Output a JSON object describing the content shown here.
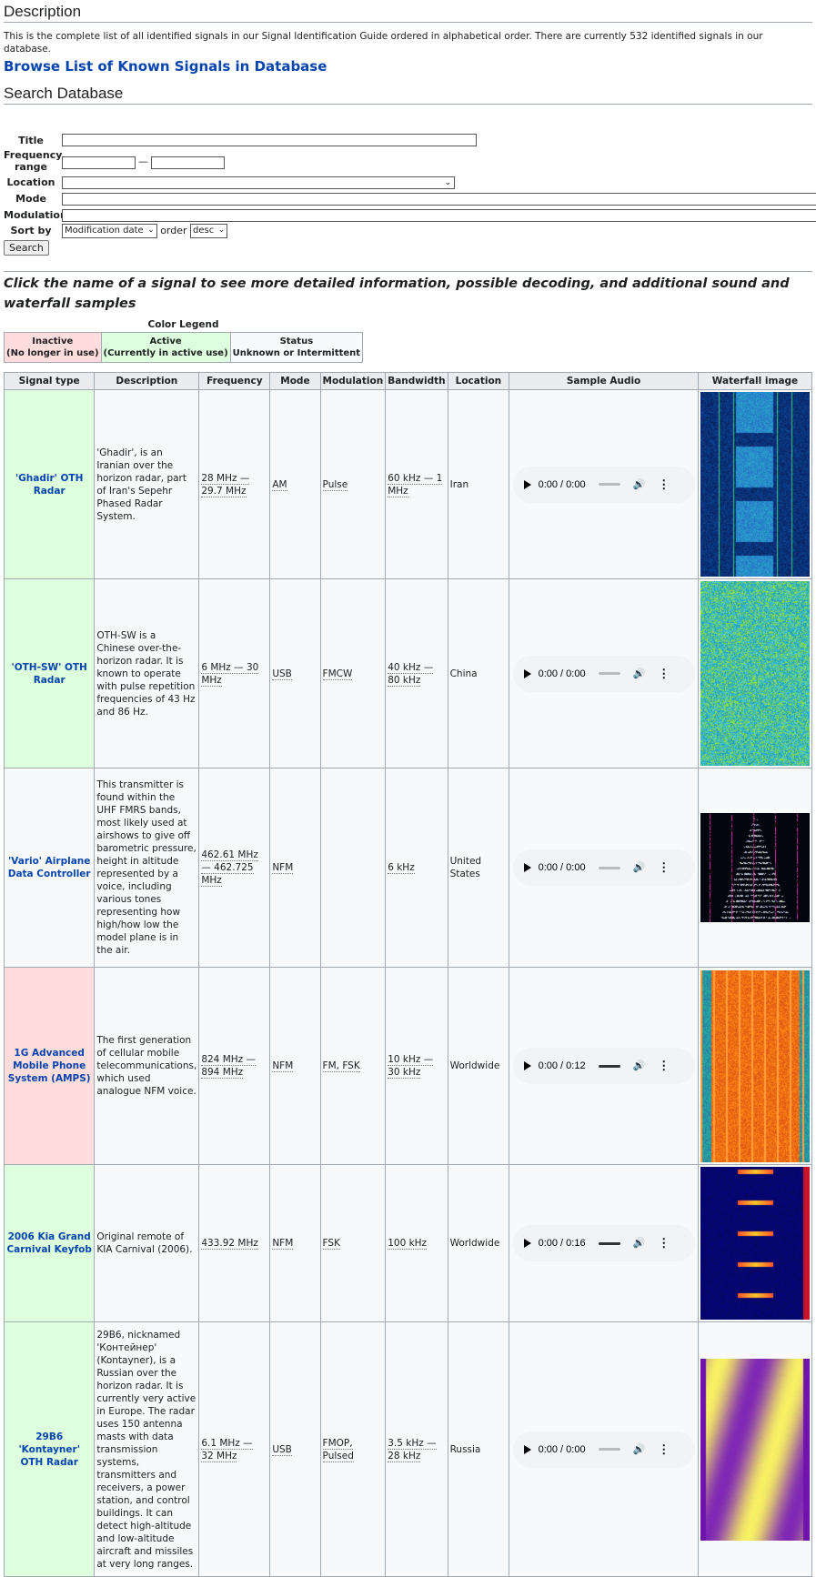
{
  "description_heading": "Description",
  "intro_text": "This is the complete list of all identified signals in our Signal Identification Guide ordered in alphabetical order. There are currently 532 identified signals in our database.",
  "browse_link": "Browse List of Known Signals in Database",
  "search_heading": "Search Database",
  "form": {
    "title_label": "Title",
    "freq_label": "Frequency range",
    "freq_sep": "—",
    "location_label": "Location",
    "mode_label": "Mode",
    "modulation_label": "Modulation",
    "sortby_label": "Sort by",
    "sortby_value": "Modification date",
    "order_label": "order",
    "order_value": "desc",
    "search_button": "Search"
  },
  "click_note": "Click the name of a signal to see more detailed information, possible decoding, and additional sound and waterfall samples",
  "legend": {
    "caption": "Color Legend",
    "inactive_1": "Inactive",
    "inactive_2": "(No longer in use)",
    "active_1": "Active",
    "active_2": "(Currently in active use)",
    "status_1": "Status",
    "status_2": "Unknown or Intermittent"
  },
  "table": {
    "headers": [
      "Signal type",
      "Description",
      "Frequency",
      "Mode",
      "Modulation",
      "Bandwidth",
      "Location",
      "Sample Audio",
      "Waterfall image"
    ],
    "rows": [
      {
        "name": "'Ghadir' OTH Radar",
        "status": "active",
        "desc": "'Ghadir', is an Iranian over the horizon radar, part of Iran's Sepehr Phased Radar System.",
        "freq": "28 MHz — 29.7 MHz",
        "mode": "AM",
        "modulation": "Pulse",
        "bandwidth": "60 kHz — 1 MHz",
        "location": "Iran",
        "audio_time": "0:00 / 0:00",
        "audio_loaded": false,
        "waterfall": "ghadir"
      },
      {
        "name": "'OTH-SW' OTH Radar",
        "status": "active",
        "desc": "OTH-SW is a Chinese over-the-horizon radar. It is known to operate with pulse repetition frequencies of 43 Hz and 86 Hz.",
        "freq": "6 MHz — 30 MHz",
        "mode": "USB",
        "modulation": "FMCW",
        "bandwidth": "40 kHz — 80 kHz",
        "location": "China",
        "audio_time": "0:00 / 0:00",
        "audio_loaded": false,
        "waterfall": "othsw"
      },
      {
        "name": "'Vario' Airplane Data Controller",
        "status": "unknown",
        "desc": "This transmitter is found within the UHF FMRS bands, most likely used at airshows to give off barometric pressure, height in altitude represented by a voice, including various tones representing how high/how low the model plane is in the air.",
        "freq": "462.61 MHz — 462.725 MHz",
        "mode": "NFM",
        "modulation": "",
        "bandwidth": "6 kHz",
        "location": "United States",
        "audio_time": "0:00 / 0:00",
        "audio_loaded": false,
        "waterfall": "vario"
      },
      {
        "name": "1G Advanced Mobile Phone System (AMPS)",
        "status": "inactive",
        "desc": "The first generation of cellular mobile telecommunications, which used analogue NFM voice.",
        "freq": "824 MHz — 894 MHz",
        "mode": "NFM",
        "modulation": "FM, FSK",
        "bandwidth": "10 kHz — 30 kHz",
        "location": "Worldwide",
        "audio_time": "0:00 / 0:12",
        "audio_loaded": true,
        "waterfall": "amps"
      },
      {
        "name": "2006 Kia Grand Carnival Keyfob",
        "status": "active",
        "desc": "Original remote of KIA Carnival (2006).",
        "freq": "433.92 MHz",
        "mode": "NFM",
        "modulation": "FSK",
        "bandwidth": "100 kHz",
        "location": "Worldwide",
        "audio_time": "0:00 / 0:16",
        "audio_loaded": true,
        "waterfall": "kia"
      },
      {
        "name": "29B6 'Kontayner' OTH Radar",
        "status": "active",
        "desc": "29B6, nicknamed 'Контейнер' (Kontayner), is a Russian over the horizon radar. It is currently very active in Europe. The radar uses 150 antenna masts with data transmission systems, transmitters and receivers, a power station, and control buildings. It can detect high-altitude and low-altitude aircraft and missiles at very long ranges.",
        "freq": "6.1 MHz — 32 MHz",
        "mode": "USB",
        "modulation": "FMOP, Pulsed",
        "bandwidth": "3.5 kHz — 28 kHz",
        "location": "Russia",
        "audio_time": "0:00 / 0:00",
        "audio_loaded": false,
        "waterfall": "kontayner"
      }
    ]
  },
  "colors": {
    "link": "#0645ad",
    "inactive": "#ffdddd",
    "active": "#ddffdd",
    "unknown": "#f8f9fa"
  }
}
